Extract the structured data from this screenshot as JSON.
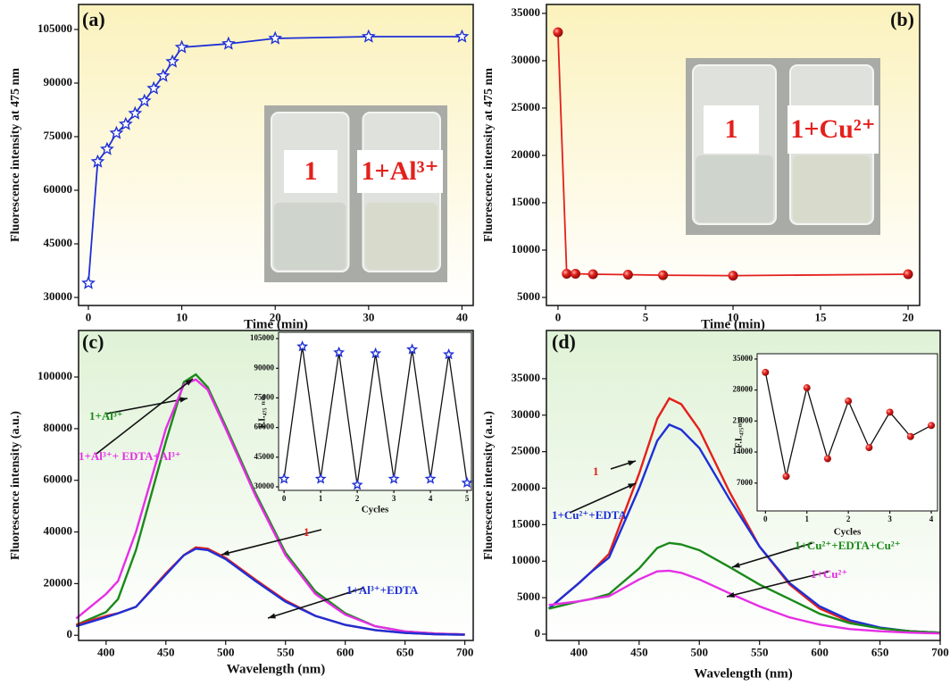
{
  "chart_data": [
    {
      "type": "line",
      "panel_label": "(a)",
      "xlabel": "Time (min)",
      "ylabel": "Fluorescence intensity at 475 nm",
      "x": [
        0,
        1,
        2,
        3,
        4,
        5,
        6,
        7,
        8,
        9,
        10,
        15,
        20,
        30,
        40
      ],
      "series": [
        {
          "name": null,
          "color": "#1f2fd6",
          "marker": "star",
          "values": [
            34000,
            68000,
            71500,
            76000,
            78500,
            81500,
            85000,
            88500,
            92000,
            96000,
            100000,
            101000,
            102500,
            103000,
            103000
          ]
        }
      ],
      "xlim": [
        -1.05,
        41.2
      ],
      "ylim": [
        27750,
        112000
      ],
      "xticks": [
        0,
        10,
        20,
        30,
        40
      ],
      "yticks": [
        30000,
        45000,
        60000,
        75000,
        90000,
        105000
      ],
      "background": "#fbf2bd",
      "photo_labels": [
        "1",
        "1+Al³⁺"
      ]
    },
    {
      "type": "line",
      "panel_label": "(b)",
      "xlabel": "Time (min)",
      "ylabel": "Fluorescence intensity at 475 nm",
      "x": [
        0,
        0.5,
        1,
        2,
        4,
        6,
        10,
        20
      ],
      "series": [
        {
          "name": null,
          "color": "#e4201c",
          "marker": "circle",
          "values": [
            33000,
            7500,
            7500,
            7450,
            7400,
            7350,
            7300,
            7450
          ]
        }
      ],
      "xlim": [
        -0.66,
        20.66
      ],
      "ylim": [
        4150,
        35940
      ],
      "xticks": [
        0,
        5,
        10,
        15,
        20
      ],
      "yticks": [
        5000,
        10000,
        15000,
        20000,
        25000,
        30000,
        35000
      ],
      "background": "#fbf2bd",
      "photo_labels": [
        "1",
        "1+Cu²⁺"
      ]
    },
    {
      "type": "line",
      "panel_label": "(c)",
      "xlabel": "Wavelength (nm)",
      "ylabel": "Fluorescence intensity (a.u.)",
      "x": [
        375,
        400,
        410,
        425,
        450,
        465,
        475,
        485,
        500,
        525,
        550,
        575,
        600,
        625,
        650,
        675,
        700
      ],
      "series": [
        {
          "name": "1+Al³⁺",
          "color": "#1a8a1a",
          "marker": null,
          "values": [
            4000,
            9000,
            14000,
            33000,
            75000,
            98000,
            101000,
            96000,
            81000,
            55000,
            32000,
            17000,
            8500,
            3500,
            1500,
            700,
            300
          ]
        },
        {
          "name": "1+Al³⁺+ EDTA+Al³⁺",
          "color": "#e62ee6",
          "marker": null,
          "values": [
            6500,
            16000,
            21000,
            40000,
            80000,
            97000,
            99000,
            95000,
            80000,
            54000,
            31000,
            16000,
            8000,
            3500,
            1500,
            700,
            300
          ]
        },
        {
          "name": "1",
          "color": "#e4201c",
          "marker": null,
          "values": [
            4000,
            7500,
            8500,
            11000,
            24000,
            31000,
            34000,
            33500,
            30000,
            21500,
            13500,
            7500,
            4000,
            2000,
            900,
            400,
            200
          ]
        },
        {
          "name": "1+Al³⁺+EDTA",
          "color": "#1f2fd6",
          "marker": null,
          "values": [
            3500,
            7000,
            8500,
            11000,
            23500,
            31000,
            33500,
            33000,
            29500,
            21000,
            13000,
            7500,
            4000,
            2000,
            900,
            400,
            200
          ]
        }
      ],
      "xlim": [
        377,
        707
      ],
      "ylim": [
        -2000,
        118000
      ],
      "xticks": [
        400,
        450,
        500,
        550,
        600,
        650,
        700
      ],
      "yticks": [
        0,
        20000,
        40000,
        60000,
        80000,
        100000
      ],
      "background": "#dff2d6"
    },
    {
      "type": "line",
      "xlabel": "Cycles",
      "ylabel": "F.I.₄₇₅ ₙₘ",
      "x": [
        0,
        0.5,
        1,
        1.5,
        2,
        2.5,
        3,
        3.5,
        4,
        4.5,
        5
      ],
      "series": [
        {
          "name": null,
          "color": "#111111",
          "marker": "star",
          "values": [
            34000,
            101000,
            34000,
            98000,
            31000,
            97500,
            34000,
            99500,
            34000,
            97000,
            32000
          ]
        }
      ],
      "xlim": [
        -0.15,
        5.12
      ],
      "ylim": [
        28200,
        108200
      ],
      "xticks": [
        0,
        1,
        2,
        3,
        4,
        5
      ],
      "yticks": [
        30000,
        45000,
        60000,
        75000,
        90000,
        105000
      ],
      "background": "#ffffff"
    },
    {
      "type": "line",
      "panel_label": "(d)",
      "xlabel": "Wavelength (nm)",
      "ylabel": "Fluorescence intensity (a.u.)",
      "x": [
        375,
        400,
        410,
        425,
        450,
        465,
        475,
        485,
        500,
        525,
        550,
        575,
        600,
        625,
        650,
        675,
        700
      ],
      "series": [
        {
          "name": "1",
          "color": "#e4201c",
          "marker": null,
          "values": [
            3500,
            7000,
            8500,
            11000,
            22000,
            29500,
            32300,
            31500,
            28000,
            19500,
            12000,
            6800,
            3500,
            1700,
            800,
            400,
            200
          ]
        },
        {
          "name": "1+Cu²⁺+EDTA",
          "color": "#1f2fd6",
          "marker": null,
          "values": [
            3500,
            7000,
            8500,
            10500,
            20000,
            26500,
            28700,
            28000,
            25500,
            18500,
            12000,
            7000,
            3800,
            1900,
            900,
            400,
            200
          ]
        },
        {
          "name": "1+Cu²⁺+EDTA+Cu²⁺",
          "color": "#1a8a1a",
          "marker": null,
          "values": [
            3500,
            4500,
            4800,
            5500,
            9000,
            11800,
            12500,
            12300,
            11500,
            9200,
            6800,
            4800,
            2800,
            1500,
            800,
            400,
            200
          ]
        },
        {
          "name": "1+Cu²⁺",
          "color": "#e62ee6",
          "marker": null,
          "values": [
            4000,
            4500,
            4800,
            5200,
            7500,
            8600,
            8700,
            8400,
            7500,
            5600,
            3800,
            2300,
            1300,
            700,
            400,
            200,
            100
          ]
        }
      ],
      "xlim": [
        373,
        700
      ],
      "ylim": [
        -860,
        41600
      ],
      "xticks": [
        400,
        450,
        500,
        550,
        600,
        650,
        700
      ],
      "yticks": [
        0,
        5000,
        10000,
        15000,
        20000,
        25000,
        30000,
        35000
      ],
      "background": "#dff2d6"
    },
    {
      "type": "line",
      "xlabel": "Cycles",
      "ylabel": "F.I.₄₇₅ₙₘ",
      "x": [
        0,
        0.5,
        1,
        1.5,
        2,
        2.5,
        3,
        3.5,
        4
      ],
      "series": [
        {
          "name": null,
          "color": "#111111",
          "marker": "circle",
          "values": [
            32000,
            8500,
            28500,
            12500,
            25500,
            15000,
            23000,
            17500,
            20000
          ]
        }
      ],
      "xlim": [
        -0.2,
        4.15
      ],
      "ylim": [
        700,
        36200
      ],
      "xticks": [
        0,
        1,
        2,
        3,
        4
      ],
      "yticks": [
        7000,
        14000,
        21000,
        28000,
        35000
      ],
      "background": "#ffffff"
    }
  ]
}
